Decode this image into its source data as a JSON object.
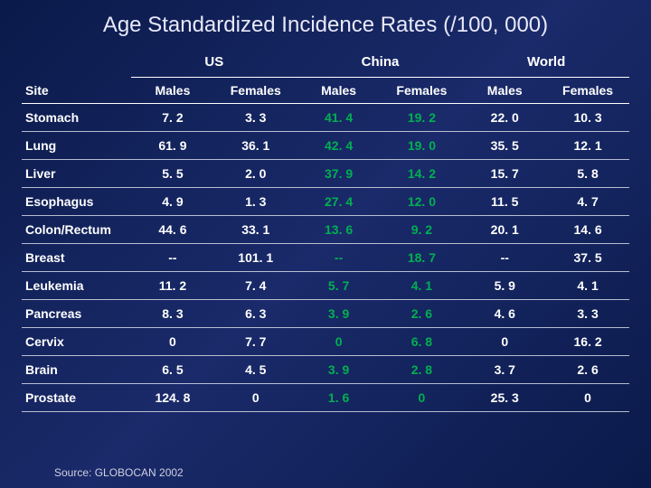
{
  "title": "Age Standardized Incidence Rates (/100, 000)",
  "source": "Source: GLOBOCAN 2002",
  "colors": {
    "background_gradient_start": "#0a1a4a",
    "background_gradient_mid": "#1a2a6a",
    "text": "#ffffff",
    "title_text": "#e8e8f8",
    "border": "#ffffff",
    "china_highlight": "#00b050"
  },
  "typography": {
    "title_fontsize": 24,
    "header_fontsize": 15,
    "cell_fontsize": 14,
    "source_fontsize": 12,
    "font_family": "Arial"
  },
  "table": {
    "type": "table",
    "site_header": "Site",
    "regions": [
      "US",
      "China",
      "World"
    ],
    "sub_columns": [
      "Males",
      "Females"
    ],
    "highlight_region_index": 1,
    "rows": [
      {
        "site": "Stomach",
        "values": [
          "7. 2",
          "3. 3",
          "41. 4",
          "19. 2",
          "22. 0",
          "10. 3"
        ]
      },
      {
        "site": "Lung",
        "values": [
          "61. 9",
          "36. 1",
          "42. 4",
          "19. 0",
          "35. 5",
          "12. 1"
        ]
      },
      {
        "site": "Liver",
        "values": [
          "5. 5",
          "2. 0",
          "37. 9",
          "14. 2",
          "15. 7",
          "5. 8"
        ]
      },
      {
        "site": "Esophagus",
        "values": [
          "4. 9",
          "1. 3",
          "27. 4",
          "12. 0",
          "11. 5",
          "4. 7"
        ]
      },
      {
        "site": "Colon/Rectum",
        "values": [
          "44. 6",
          "33. 1",
          "13. 6",
          "9. 2",
          "20. 1",
          "14. 6"
        ]
      },
      {
        "site": "Breast",
        "values": [
          "--",
          "101. 1",
          "--",
          "18. 7",
          "--",
          "37. 5"
        ]
      },
      {
        "site": "Leukemia",
        "values": [
          "11. 2",
          "7. 4",
          "5. 7",
          "4. 1",
          "5. 9",
          "4. 1"
        ]
      },
      {
        "site": "Pancreas",
        "values": [
          "8. 3",
          "6. 3",
          "3. 9",
          "2. 6",
          "4. 6",
          "3. 3"
        ]
      },
      {
        "site": "Cervix",
        "values": [
          "0",
          "7. 7",
          "0",
          "6. 8",
          "0",
          "16. 2"
        ]
      },
      {
        "site": "Brain",
        "values": [
          "6. 5",
          "4. 5",
          "3. 9",
          "2. 8",
          "3. 7",
          "2. 6"
        ]
      },
      {
        "site": "Prostate",
        "values": [
          "124. 8",
          "0",
          "1. 6",
          "0",
          "25. 3",
          "0"
        ]
      }
    ]
  }
}
